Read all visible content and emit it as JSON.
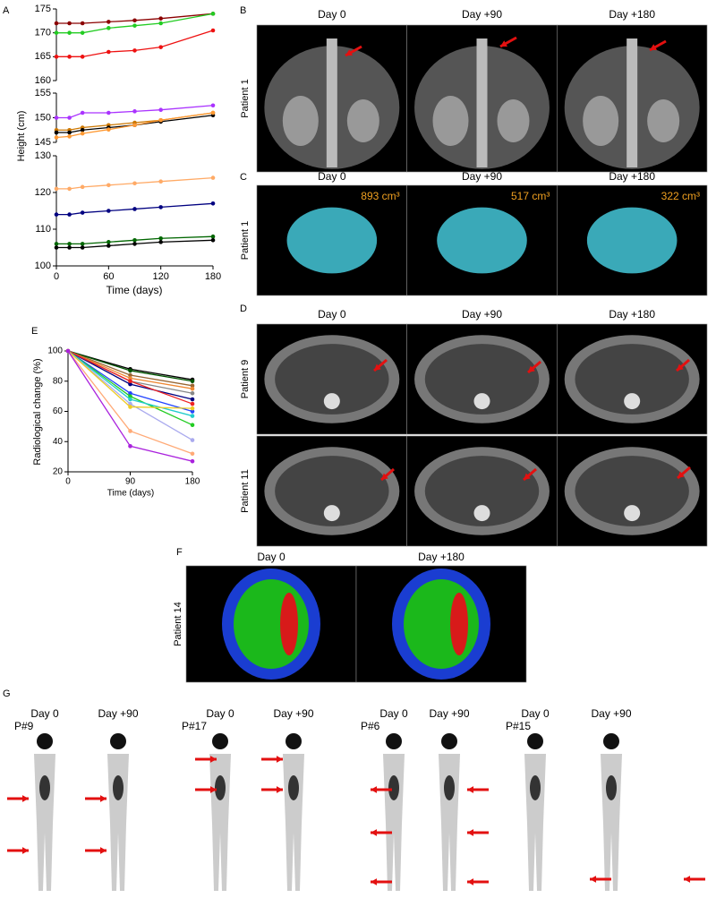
{
  "panel_labels": [
    "A",
    "B",
    "C",
    "D",
    "E",
    "F",
    "G"
  ],
  "chart_data": [
    {
      "type": "line",
      "xlabel": "Time (days)",
      "ylabel": "Height (cm)",
      "x": [
        0,
        15,
        30,
        60,
        90,
        120,
        180
      ],
      "xlim": [
        0,
        180
      ],
      "xticks": [
        0,
        60,
        120,
        180
      ],
      "segments": [
        {
          "ylim": [
            160,
            175
          ],
          "yticks": [
            160,
            165,
            170,
            175
          ]
        },
        {
          "ylim": [
            145,
            155
          ],
          "yticks": [
            145,
            150,
            155
          ]
        },
        {
          "ylim": [
            100,
            130
          ],
          "yticks": [
            100,
            110,
            120,
            130
          ]
        }
      ],
      "series": [
        {
          "color": "#8b0000",
          "values": [
            172,
            172,
            172,
            172.3,
            172.6,
            173,
            174
          ]
        },
        {
          "color": "#22cc22",
          "values": [
            170,
            170,
            170,
            171,
            171.5,
            172,
            174
          ]
        },
        {
          "color": "#ee1111",
          "values": [
            165,
            165,
            165,
            166,
            166.3,
            167,
            170.5
          ]
        },
        {
          "color": "#aa33ff",
          "values": [
            150,
            150,
            151,
            151,
            151.3,
            151.6,
            152.5
          ]
        },
        {
          "color": "#cc7700",
          "values": [
            147.5,
            147.5,
            148,
            148.5,
            149,
            149.5,
            151
          ]
        },
        {
          "color": "#000000",
          "values": [
            147,
            147,
            147.5,
            148,
            148.5,
            149.2,
            150.5
          ]
        },
        {
          "color": "#ff9933",
          "values": [
            146,
            146.2,
            146.8,
            147.6,
            148.5,
            149.5,
            151
          ]
        },
        {
          "color": "#ffaa66",
          "values": [
            121,
            121,
            121.5,
            122,
            122.5,
            123,
            124
          ]
        },
        {
          "color": "#000080",
          "values": [
            114,
            114,
            114.5,
            115,
            115.5,
            116,
            117
          ]
        },
        {
          "color": "#006600",
          "values": [
            106,
            106,
            106,
            106.5,
            107,
            107.5,
            108
          ]
        },
        {
          "color": "#000000",
          "values": [
            105,
            105,
            105,
            105.5,
            106,
            106.5,
            107
          ]
        }
      ]
    },
    {
      "type": "line",
      "xlabel": "Time (days)",
      "ylabel": "Radiological change (%)",
      "x": [
        0,
        90,
        180
      ],
      "xlim": [
        0,
        180
      ],
      "xticks": [
        0,
        90,
        180
      ],
      "ylim": [
        20,
        100
      ],
      "yticks": [
        20,
        40,
        60,
        80,
        100
      ],
      "series": [
        {
          "color": "#000000",
          "values": [
            100,
            88,
            81
          ]
        },
        {
          "color": "#005500",
          "values": [
            100,
            87,
            80
          ]
        },
        {
          "color": "#996633",
          "values": [
            100,
            84,
            77
          ]
        },
        {
          "color": "#ee8833",
          "values": [
            100,
            82,
            75
          ]
        },
        {
          "color": "#888888",
          "values": [
            100,
            80,
            72
          ]
        },
        {
          "color": "#000080",
          "values": [
            100,
            78,
            68
          ]
        },
        {
          "color": "#ee2222",
          "values": [
            100,
            80,
            65
          ]
        },
        {
          "color": "#2244ff",
          "values": [
            100,
            72,
            60
          ]
        },
        {
          "color": "#22cc22",
          "values": [
            100,
            70,
            51
          ]
        },
        {
          "color": "#22cccc",
          "values": [
            100,
            68,
            57
          ]
        },
        {
          "color": "#aaaaee",
          "values": [
            100,
            65,
            41
          ]
        },
        {
          "color": "#eecc22",
          "values": [
            100,
            63,
            62
          ]
        },
        {
          "color": "#ffaa77",
          "values": [
            100,
            47,
            32
          ]
        },
        {
          "color": "#aa22dd",
          "values": [
            100,
            37,
            27
          ]
        }
      ]
    }
  ],
  "mri": {
    "columns": [
      "Day 0",
      "Day +90",
      "Day +180"
    ],
    "rows": [
      "Patient 1"
    ]
  },
  "volumes": {
    "columns": [
      "Day 0",
      "Day +90",
      "Day +180"
    ],
    "rows": [
      "Patient 1"
    ],
    "values": [
      "893 cm³",
      "517 cm³",
      "322 cm³"
    ]
  },
  "kidney": {
    "columns": [
      "Day 0",
      "Day +90",
      "Day +180"
    ],
    "rows": [
      "Patient 9",
      "Patient 11"
    ]
  },
  "pet": {
    "columns": [
      "Day 0",
      "Day +180"
    ],
    "rows": [
      "Patient 14"
    ]
  },
  "scans": [
    {
      "patient": "P#9",
      "columns": [
        "Day 0",
        "Day +90"
      ]
    },
    {
      "patient": "P#17",
      "columns": [
        "Day 0",
        "Day +90"
      ]
    },
    {
      "patient": "P#6",
      "columns": [
        "Day 0",
        "Day +90"
      ]
    },
    {
      "patient": "P#15",
      "columns": [
        "Day 0",
        "Day +90"
      ]
    }
  ]
}
